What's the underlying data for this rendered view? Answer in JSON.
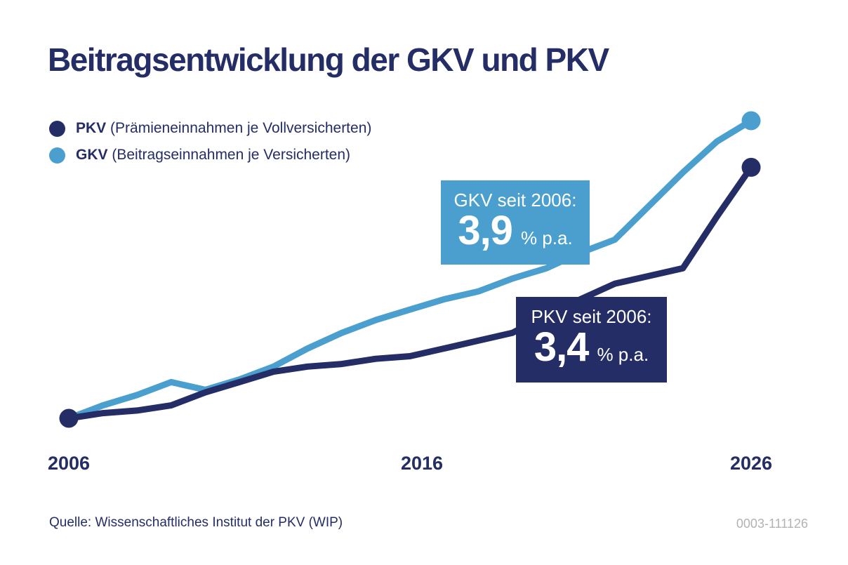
{
  "title": "Beitragsentwicklung der GKV und PKV",
  "colors": {
    "navy": "#242d66",
    "blue": "#4a9fce",
    "gray": "#b3b3b3",
    "background": "#ffffff"
  },
  "legend": [
    {
      "series": "PKV",
      "label_bold": "PKV",
      "label_rest": " (Prämieneinnahmen je Vollversicherten)",
      "color": "#242d66"
    },
    {
      "series": "GKV",
      "label_bold": "GKV",
      "label_rest": " (Beitragseinnahmen je Versicherten)",
      "color": "#4a9fce"
    }
  ],
  "callouts": {
    "gkv": {
      "title": "GKV seit 2006:",
      "value": "3,9",
      "unit": "% p.a."
    },
    "pkv": {
      "title": "PKV seit 2006:",
      "value": "3,4",
      "unit": "% p.a."
    }
  },
  "x_axis": {
    "labels": [
      "2006",
      "2016",
      "2026"
    ]
  },
  "footer": {
    "source": "Quelle: Wissenschaftliches Institut der PKV (WIP)",
    "code": "0003-111126"
  },
  "chart_data": {
    "type": "line",
    "title": "Beitragsentwicklung der GKV und PKV",
    "x": [
      2006,
      2007,
      2008,
      2009,
      2010,
      2011,
      2012,
      2013,
      2014,
      2015,
      2016,
      2017,
      2018,
      2019,
      2020,
      2021,
      2022,
      2023,
      2024,
      2025,
      2026
    ],
    "x_tick_labels": [
      "2006",
      "2016",
      "2026"
    ],
    "y_axis_visible": false,
    "grid": false,
    "note": "No y-axis shown; values are an index (2006 = 100) estimated from line positions.",
    "annual_growth_pct": {
      "GKV": 3.9,
      "PKV": 3.4
    },
    "series": [
      {
        "id": "gkv",
        "name": "GKV (Beitragseinnahmen je Versicherten)",
        "color": "#4a9fce",
        "marker_start": false,
        "marker_end": true,
        "values": [
          100,
          105,
          109,
          114,
          111,
          115,
          120,
          127,
          133,
          138,
          142,
          146,
          149,
          154,
          158,
          164,
          169,
          182,
          195,
          207,
          215
        ]
      },
      {
        "id": "pkv",
        "name": "PKV (Prämieneinnahmen je Vollversicherten)",
        "color": "#242d66",
        "marker_start": true,
        "marker_end": true,
        "values": [
          100,
          102,
          103,
          105,
          110,
          114,
          118,
          120,
          121,
          123,
          124,
          127,
          130,
          133,
          140,
          146,
          152,
          155,
          158,
          178,
          197
        ]
      }
    ]
  }
}
